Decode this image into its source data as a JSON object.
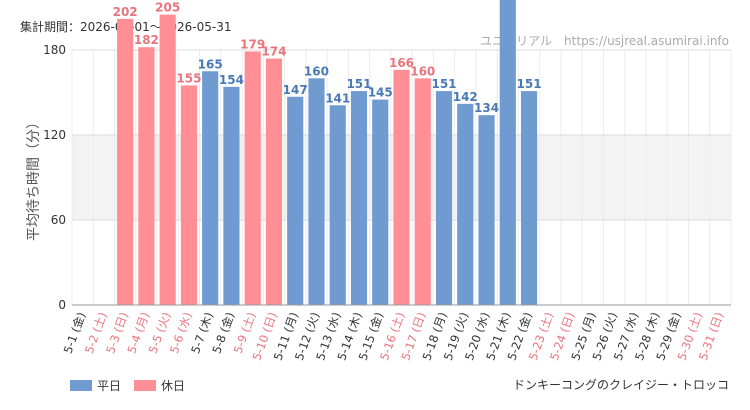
{
  "header": {
    "period": "集計期間：2026-05-01～2026-05-31",
    "site": "ユニバリアル　https://usjreal.asumirai.info"
  },
  "footer": {
    "attraction": "ドンキーコングのクレイジー・トロッコ"
  },
  "colors": {
    "weekday": "#6f9bd1",
    "holiday": "#ff8f94",
    "weekday_text": "#333333",
    "holiday_text": "#e9747d",
    "value_weekday": "#4a7ab6",
    "value_holiday": "#e9747d"
  },
  "chart_data": {
    "type": "bar",
    "ylabel": "平均待ち時間（分）",
    "ylim": [
      0,
      180
    ],
    "yticks": [
      0,
      60,
      120,
      180
    ],
    "legend": [
      {
        "key": "weekday",
        "label": "平日"
      },
      {
        "key": "holiday",
        "label": "休日"
      }
    ],
    "categories": [
      "5-1 (金)",
      "5-2 (土)",
      "5-3 (日)",
      "5-4 (月)",
      "5-5 (火)",
      "5-6 (水)",
      "5-7 (木)",
      "5-8 (金)",
      "5-9 (土)",
      "5-10 (日)",
      "5-11 (月)",
      "5-12 (火)",
      "5-13 (水)",
      "5-14 (木)",
      "5-15 (金)",
      "5-16 (土)",
      "5-17 (日)",
      "5-18 (月)",
      "5-19 (火)",
      "5-20 (水)",
      "5-21 (木)",
      "5-22 (金)",
      "5-23 (土)",
      "5-24 (日)",
      "5-25 (月)",
      "5-26 (火)",
      "5-27 (水)",
      "5-28 (木)",
      "5-29 (金)",
      "5-30 (土)",
      "5-31 (日)"
    ],
    "day_type": [
      "weekday",
      "holiday",
      "holiday",
      "holiday",
      "holiday",
      "holiday",
      "weekday",
      "weekday",
      "holiday",
      "holiday",
      "weekday",
      "weekday",
      "weekday",
      "weekday",
      "weekday",
      "holiday",
      "holiday",
      "weekday",
      "weekday",
      "weekday",
      "weekday",
      "weekday",
      "holiday",
      "holiday",
      "weekday",
      "weekday",
      "weekday",
      "weekday",
      "weekday",
      "holiday",
      "holiday"
    ],
    "values": [
      null,
      null,
      202,
      182,
      205,
      155,
      165,
      154,
      179,
      174,
      147,
      160,
      141,
      151,
      145,
      166,
      160,
      151,
      142,
      134,
      null,
      151,
      null,
      null,
      null,
      null,
      null,
      null,
      null,
      null,
      null
    ],
    "offscale_bars": [
      {
        "category": "5-21 (木)",
        "day_type": "weekday",
        "note": "bar exceeds top of axis; value label not visible"
      }
    ]
  }
}
